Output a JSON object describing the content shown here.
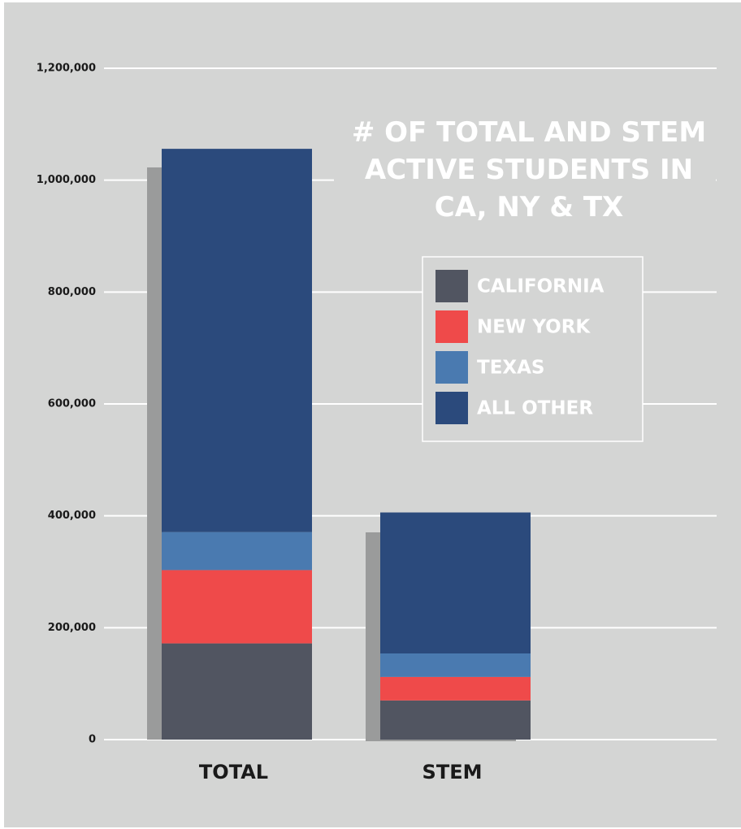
{
  "chart_data": {
    "type": "stacked_bar",
    "title": "# OF TOTAL AND STEM ACTIVE STUDENTS IN CA, NY & TX",
    "categories": [
      "TOTAL",
      "STEM"
    ],
    "series": [
      {
        "name": "CALIFORNIA",
        "color": "#515561",
        "values": [
          172000,
          70000
        ]
      },
      {
        "name": "NEW YORK",
        "color": "#ef4a4a",
        "values": [
          131000,
          42000
        ]
      },
      {
        "name": "TEXAS",
        "color": "#4a7ab0",
        "values": [
          68000,
          42000
        ]
      },
      {
        "name": "ALL OTHER",
        "color": "#2b4a7c",
        "values": [
          685000,
          252000
        ]
      }
    ],
    "ylim": [
      0,
      1200000
    ],
    "yticks": [
      0,
      {
        "value": 200000,
        "label": "200,000"
      },
      {
        "value": 400000,
        "label": "400,000"
      },
      {
        "value": 600000,
        "label": "600,000"
      },
      {
        "value": 800000,
        "label": "800,000"
      },
      {
        "value": 1000000,
        "label": "1,000,000"
      },
      {
        "value": 1200000,
        "label": "1,200,000"
      }
    ],
    "grid": true,
    "legend": "upper right"
  }
}
